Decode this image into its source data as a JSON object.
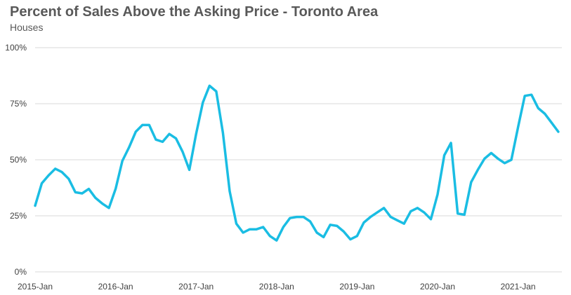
{
  "chart_data": {
    "type": "line",
    "title": "Percent of Sales Above the Asking Price - Toronto Area",
    "subtitle": "Houses",
    "xlabel": "",
    "ylabel": "",
    "ylim": [
      0,
      100
    ],
    "y_ticks": [
      0,
      25,
      50,
      75,
      100
    ],
    "y_tick_labels": [
      "0%",
      "25%",
      "50%",
      "75%",
      "100%"
    ],
    "x_tick_labels": [
      "2015-Jan",
      "2016-Jan",
      "2017-Jan",
      "2018-Jan",
      "2019-Jan",
      "2020-Jan",
      "2021-Jan"
    ],
    "x_tick_index": [
      0,
      12,
      24,
      36,
      48,
      60,
      72
    ],
    "grid": "horizontal",
    "line_color": "#1ABDE3",
    "series": [
      {
        "values": [
          29.5,
          39.5,
          43.0,
          46.0,
          44.5,
          41.5,
          35.5,
          35.0,
          37.0,
          33.0,
          30.5,
          28.5,
          37.0,
          49.5,
          55.5,
          62.5,
          65.5,
          65.5,
          59.0,
          58.0,
          61.5,
          59.5,
          53.5,
          45.5,
          61.5,
          75.5,
          83.0,
          80.5,
          62.0,
          36.0,
          21.5,
          17.5,
          19.0,
          19.0,
          20.0,
          16.0,
          14.0,
          20.0,
          24.0,
          24.5,
          24.5,
          22.5,
          17.5,
          15.5,
          21.0,
          20.5,
          18.0,
          14.5,
          16.0,
          22.0,
          24.5,
          26.5,
          28.5,
          24.5,
          23.0,
          21.5,
          27.0,
          28.5,
          26.5,
          23.5,
          34.5,
          52.0,
          57.5,
          26.0,
          25.5,
          40.0,
          45.5,
          50.5,
          53.0,
          50.5,
          48.5,
          50.0,
          64.5,
          78.5,
          79.0,
          73.0,
          70.5,
          66.5,
          62.5
        ]
      }
    ]
  }
}
